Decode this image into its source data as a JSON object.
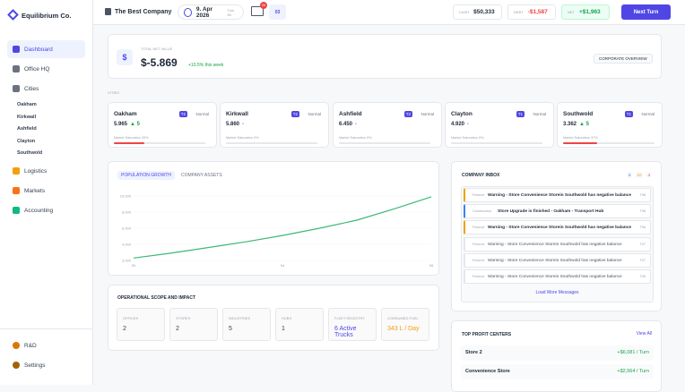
{
  "sidebar": {
    "brand": "Equilibrium Co.",
    "nav": [
      "Dashboard",
      "Office HQ",
      "Cities"
    ],
    "cities": [
      "Oakham",
      "Kirkwall",
      "Ashfield",
      "Clayton",
      "Southwold"
    ],
    "nav2": [
      "Logistics",
      "Markets",
      "Accounting"
    ],
    "bottom": [
      "R&D",
      "Settings"
    ]
  },
  "topbar": {
    "company": "The Best Company",
    "date": "9. Apr 2026",
    "turn": "Turn 98",
    "mail_badge": "20",
    "notifications": "03",
    "cash_label": "CASH",
    "cash": "$50,333",
    "debt_label": "DEBT",
    "debt": "-$1,587",
    "net_label": "NET",
    "net": "+$1,963",
    "next_turn": "Next Turn"
  },
  "net_value": {
    "label": "TOTAL NET VALUE",
    "value": "$-5.869",
    "change": "+10.5% this week",
    "button": "CORPORATE OVERVIEW"
  },
  "cities_label": "CITIES",
  "cities": [
    {
      "name": "Oakham",
      "tier": "T2",
      "status": "Normal",
      "value": "5.965",
      "trend": "▲ 5",
      "saturation_label": "Market Saturation 33%",
      "saturation": 33
    },
    {
      "name": "Kirkwall",
      "tier": "T2",
      "status": "Normal",
      "value": "5.860",
      "trend": "-",
      "saturation_label": "Market Saturation 0%",
      "saturation": 0
    },
    {
      "name": "Ashfield",
      "tier": "T2",
      "status": "Normal",
      "value": "6.450",
      "trend": "-",
      "saturation_label": "Market Saturation 0%",
      "saturation": 0
    },
    {
      "name": "Clayton",
      "tier": "T1",
      "status": "Normal",
      "value": "4.920",
      "trend": "-",
      "saturation_label": "Market Saturation 0%",
      "saturation": 0
    },
    {
      "name": "Southwold",
      "tier": "T1",
      "status": "Normal",
      "value": "3.362",
      "trend": "▲ 5",
      "saturation_label": "Market Saturation 37%",
      "saturation": 37
    }
  ],
  "chart_tabs": [
    "POPULATION GROWTH",
    "COMPANY ASSETS"
  ],
  "chart_data": {
    "type": "line",
    "x": [
      90,
      91,
      92,
      93,
      94,
      95,
      96,
      97,
      98
    ],
    "values": [
      2300,
      2900,
      3600,
      4300,
      5100,
      6000,
      7000,
      8400,
      9900
    ],
    "color": "#3cb878",
    "xlim": [
      90,
      98
    ],
    "xticks": [
      90,
      94,
      98
    ],
    "ylim": [
      2000,
      10000
    ],
    "yticks": [
      {
        "value": 2000,
        "label": "2,000"
      },
      {
        "value": 4000,
        "label": "4,000"
      },
      {
        "value": 6000,
        "label": "6,000"
      },
      {
        "value": 8000,
        "label": "8,000"
      },
      {
        "value": 10000,
        "label": "10,000"
      }
    ],
    "grid": true
  },
  "operations": {
    "title": "OPERATIONAL SCOPE AND IMPACT",
    "stats": [
      {
        "label": "OFFICES",
        "value": "2"
      },
      {
        "label": "STORES",
        "value": "2"
      },
      {
        "label": "INDUSTRIES",
        "value": "5"
      },
      {
        "label": "HUBS",
        "value": "1"
      },
      {
        "label": "FLEET REGISTRY",
        "value": "6 Active Trucks",
        "color": "#4f46e5"
      },
      {
        "label": "CONSUMED FUEL",
        "value": "343 L / Day",
        "color": "#f59e0b"
      }
    ]
  },
  "inbox": {
    "title": "COMPANY INBOX",
    "counts": [
      {
        "text": "6",
        "color": "#3b82f6"
      },
      {
        "text": "10",
        "color": "#f59e0b"
      },
      {
        "text": "4",
        "color": "#ef4444"
      }
    ],
    "messages": [
      {
        "tag": "Finance",
        "text": "Warning - Store Convenience Storein Southwold has negative balance",
        "turn": "T98",
        "accent": "#f59e0b"
      },
      {
        "tag": "Construction",
        "text": "Store Upgrade is finished - Oakham - Transport Hub",
        "turn": "T98",
        "accent": "#3b82f6"
      },
      {
        "tag": "Finance",
        "text": "Warning - Store Convenience Storein Southwold has negative balance",
        "turn": "T98",
        "accent": "#f59e0b"
      },
      {
        "tag": "Finance",
        "text": "Warning - Store Convenience Storein Southwold has negative balance",
        "turn": "T97"
      },
      {
        "tag": "Finance",
        "text": "Warning - Store Convenience Storein Southwold has negative balance",
        "turn": "T97"
      },
      {
        "tag": "Finance",
        "text": "Warning - Store Convenience Storein Southwold has negative balance",
        "turn": "T96"
      }
    ],
    "load_more": "Load More Messages"
  },
  "profit": {
    "title": "TOP PROFIT CENTERS",
    "view_all": "View All",
    "items": [
      {
        "name": "Store 2",
        "value": "+$6,081 / Turn"
      },
      {
        "name": "Convenience Store",
        "value": "+$2,564 / Turn"
      }
    ]
  }
}
